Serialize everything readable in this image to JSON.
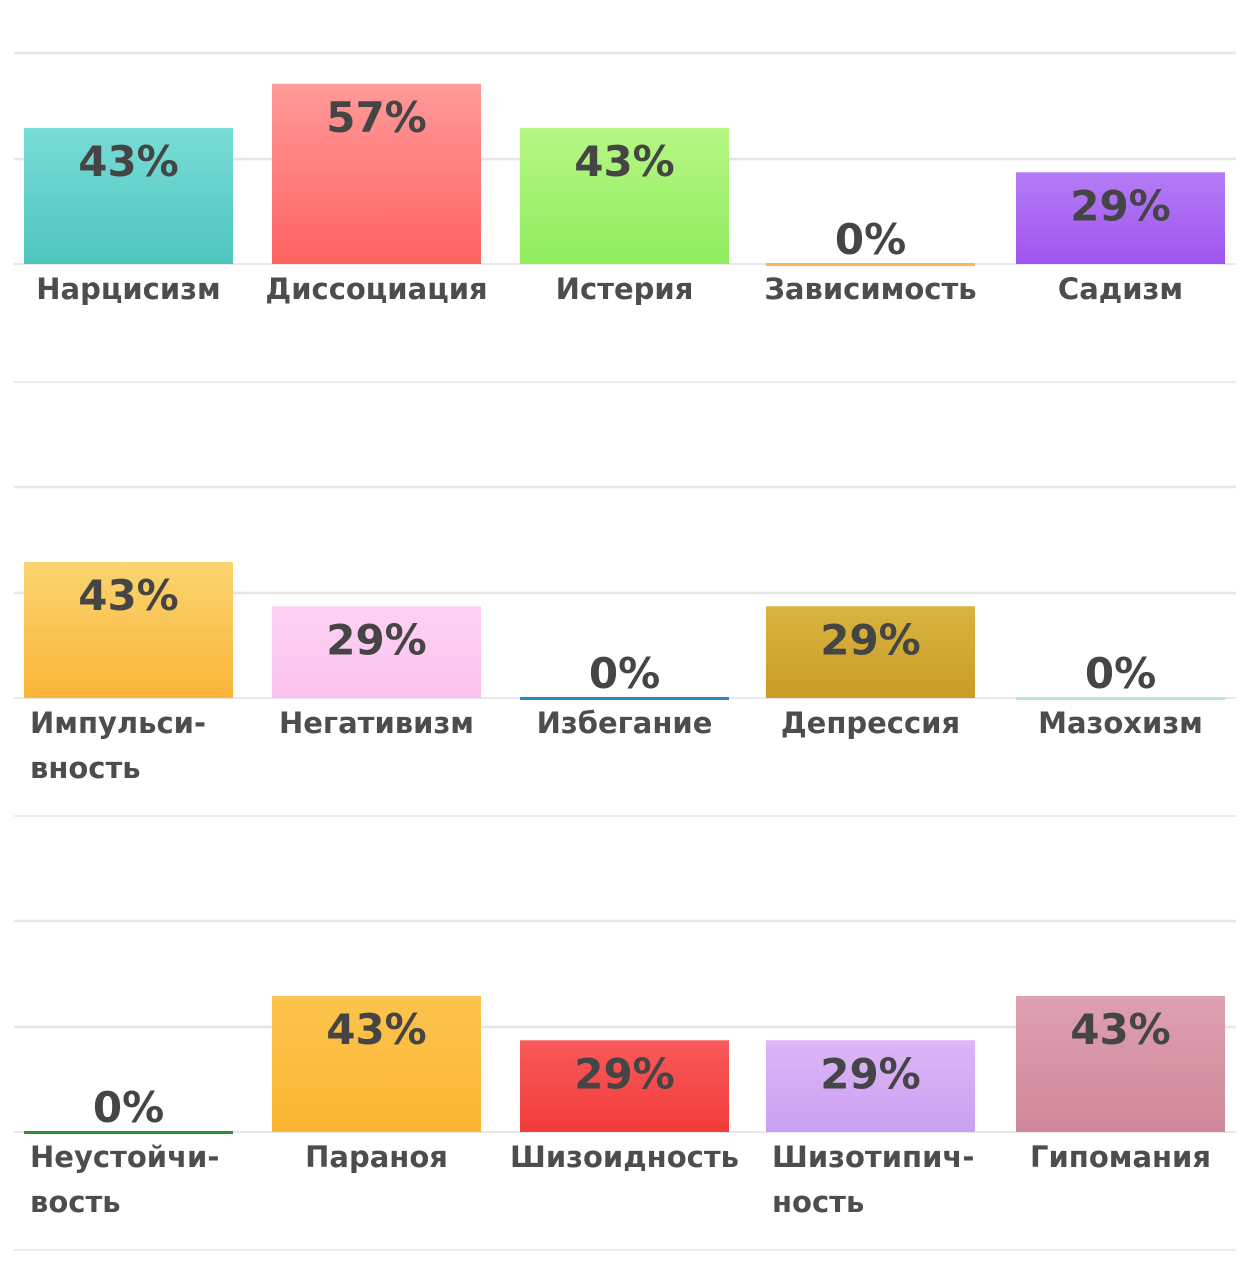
{
  "chart_data": [
    {
      "type": "bar",
      "categories": [
        "Нарцисизм",
        "Диссоциация",
        "Истерия",
        "Зависимость",
        "Садизм"
      ],
      "category_lines": [
        [
          "Нарцисизм"
        ],
        [
          "Диссоциация"
        ],
        [
          "Истерия"
        ],
        [
          "Зависимость"
        ],
        [
          "Садизм"
        ]
      ],
      "values": [
        43,
        57,
        43,
        0,
        29
      ],
      "value_labels": [
        "43%",
        "57%",
        "43%",
        "0%",
        "29%"
      ],
      "colors": [
        [
          "#78dcd6",
          "#4ec6be"
        ],
        [
          "#ff9a98",
          "#ff6262"
        ],
        [
          "#b6f784",
          "#90ec5e"
        ],
        [
          "#fcd08a",
          "#f8b65c"
        ],
        [
          "#b57cf6",
          "#9e55ef"
        ]
      ],
      "ylim": [
        0,
        100
      ],
      "grid": true
    },
    {
      "type": "bar",
      "categories": [
        "Импульсивность",
        "Негативизм",
        "Избегание",
        "Депрессия",
        "Мазохизм"
      ],
      "category_lines": [
        [
          "Импульси-",
          "вность"
        ],
        [
          "Негативизм"
        ],
        [
          "Избегание"
        ],
        [
          "Депрессия"
        ],
        [
          "Мазохизм"
        ]
      ],
      "values": [
        43,
        29,
        0,
        29,
        0
      ],
      "value_labels": [
        "43%",
        "29%",
        "0%",
        "29%",
        "0%"
      ],
      "colors": [
        [
          "#fad470",
          "#fbb538"
        ],
        [
          "#fdd2f3",
          "#fcc2ee"
        ],
        [
          "#4ea3d9",
          "#2a87c4"
        ],
        [
          "#d9b440",
          "#c89c26"
        ],
        [
          "#cfeee9",
          "#b8e4dd"
        ]
      ],
      "ylim": [
        0,
        100
      ],
      "grid": true
    },
    {
      "type": "bar",
      "categories": [
        "Неустойчивость",
        "Параноя",
        "Шизоидность",
        "Шизотипичность",
        "Гипомания"
      ],
      "category_lines": [
        [
          "Неустойчи-",
          "вость"
        ],
        [
          "Параноя"
        ],
        [
          "Шизоидность"
        ],
        [
          "Шизотипич-",
          "ность"
        ],
        [
          "Гипомания"
        ]
      ],
      "values": [
        0,
        43,
        29,
        29,
        43
      ],
      "value_labels": [
        "0%",
        "43%",
        "29%",
        "29%",
        "43%"
      ],
      "colors": [
        [
          "#4fb05a",
          "#2e8f3a"
        ],
        [
          "#fcc44e",
          "#fbb431"
        ],
        [
          "#f95a5a",
          "#f23b3b"
        ],
        [
          "#dcb6f6",
          "#caa0f2"
        ],
        [
          "#dea0b0",
          "#cf889a"
        ]
      ],
      "ylim": [
        0,
        100
      ],
      "grid": true
    }
  ]
}
